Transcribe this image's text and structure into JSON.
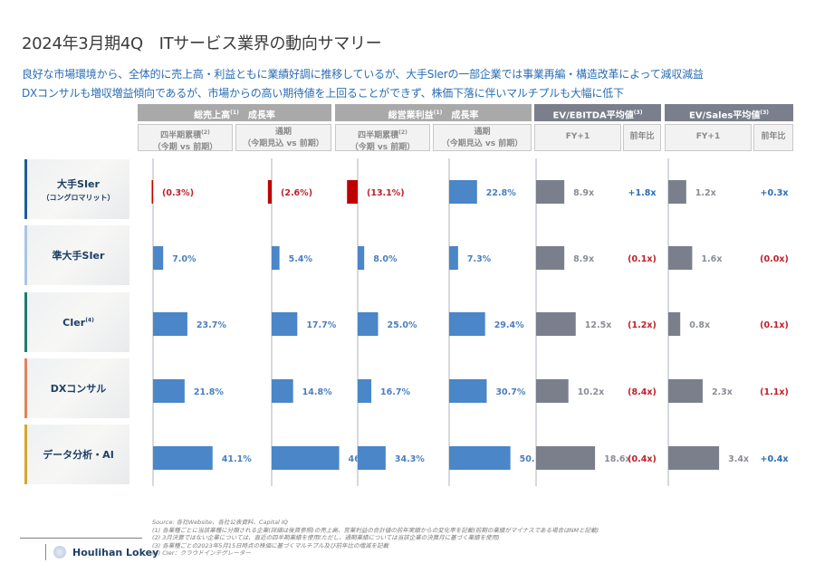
{
  "header": {
    "title": "2024年3月期4Q　ITサービス業界の動向サマリー",
    "summary_lines": [
      "良好な市場環境から、全体的に売上高・利益ともに業績好調に推移しているが、大手SIerの一部企業では事業再編・構造改革によって減収減益",
      "DXコンサルも増収増益傾向であるが、市場からの高い期待値を上回ることができず、株価下落に伴いマルチプルも大幅に低下"
    ]
  },
  "column_groups": [
    {
      "label": "総売上高",
      "sup": "(1)",
      "suffix": "　成長率"
    },
    {
      "label": "総営業利益",
      "sup": "(1)",
      "suffix": "　成長率"
    },
    {
      "label": "EV/EBITDA平均値",
      "sup": "(3)",
      "suffix": ""
    },
    {
      "label": "EV/Sales平均値",
      "sup": "(3)",
      "suffix": ""
    }
  ],
  "sub_headers": [
    {
      "line1": "四半期累積",
      "sup": "(2)",
      "line2": "（今期 vs 前期）"
    },
    {
      "line1": "通期",
      "sup": "",
      "line2": "（今期見込 vs 前期）"
    },
    {
      "line1": "四半期累積",
      "sup": "(2)",
      "line2": "（今期 vs 前期）"
    },
    {
      "line1": "通期",
      "sup": "",
      "line2": "（今期見込 vs 前期）"
    },
    {
      "line1": "FY+1"
    },
    {
      "line1": "前年比"
    },
    {
      "line1": "FY+1"
    },
    {
      "line1": "前年比"
    }
  ],
  "rows": [
    {
      "label": "大手SIer",
      "sub": "（コングロマリット）",
      "sup": "",
      "accent": "#1f5c99"
    },
    {
      "label": "準大手SIer",
      "sub": "",
      "sup": "",
      "accent": "#a8c6e4"
    },
    {
      "label": "CIer",
      "sub": "",
      "sup": "(4)",
      "accent": "#1f7a6e"
    },
    {
      "label": "DXコンサル",
      "sub": "",
      "sup": "",
      "accent": "#e0845a"
    },
    {
      "label": "データ分析・AI",
      "sub": "",
      "sup": "",
      "accent": "#d4a72c"
    }
  ],
  "colors": {
    "positive_bar": "#4a86c8",
    "negative_bar": "#c00000",
    "multiple_bar": "#7b7f8c",
    "positive_text": "#4a7fc0",
    "negative_text": "#c0202a",
    "multiple_text": "#8a8d95",
    "yoy_positive_text": "#2a6db5"
  },
  "chart_data": [
    {
      "type": "bar",
      "title": "総売上高 成長率 四半期累積（今期 vs 前期）",
      "orientation": "horizontal",
      "unit": "%",
      "categories": [
        "大手SIer（コングロマリット）",
        "準大手SIer",
        "CIer",
        "DXコンサル",
        "データ分析・AI"
      ],
      "values": [
        -0.3,
        7.0,
        23.7,
        21.8,
        41.1
      ],
      "labels": [
        "(0.3%)",
        "7.0%",
        "23.7%",
        "21.8%",
        "41.1%"
      ]
    },
    {
      "type": "bar",
      "title": "総売上高 成長率 通期（今期見込 vs 前期）",
      "orientation": "horizontal",
      "unit": "%",
      "categories": [
        "大手SIer（コングロマリット）",
        "準大手SIer",
        "CIer",
        "DXコンサル",
        "データ分析・AI"
      ],
      "values": [
        -2.6,
        5.4,
        17.7,
        14.8,
        46.6
      ],
      "labels": [
        "(2.6%)",
        "5.4%",
        "17.7%",
        "14.8%",
        "46.6%"
      ]
    },
    {
      "type": "bar",
      "title": "総営業利益 成長率 四半期累積（今期 vs 前期）",
      "orientation": "horizontal",
      "unit": "%",
      "categories": [
        "大手SIer（コングロマリット）",
        "準大手SIer",
        "CIer",
        "DXコンサル",
        "データ分析・AI"
      ],
      "values": [
        -13.1,
        8.0,
        25.0,
        16.7,
        34.3
      ],
      "labels": [
        "(13.1%)",
        "8.0%",
        "25.0%",
        "16.7%",
        "34.3%"
      ]
    },
    {
      "type": "bar",
      "title": "総営業利益 成長率 通期（今期見込 vs 前期）",
      "orientation": "horizontal",
      "unit": "%",
      "categories": [
        "大手SIer（コングロマリット）",
        "準大手SIer",
        "CIer",
        "DXコンサル",
        "データ分析・AI"
      ],
      "values": [
        22.8,
        7.3,
        29.4,
        30.7,
        50.1
      ],
      "labels": [
        "22.8%",
        "7.3%",
        "29.4%",
        "30.7%",
        "50.1%"
      ]
    },
    {
      "type": "bar",
      "title": "EV/EBITDA平均値 FY+1",
      "orientation": "horizontal",
      "unit": "x",
      "categories": [
        "大手SIer（コングロマリット）",
        "準大手SIer",
        "CIer",
        "DXコンサル",
        "データ分析・AI"
      ],
      "values": [
        8.9,
        8.9,
        12.5,
        10.2,
        18.6
      ],
      "labels": [
        "8.9x",
        "8.9x",
        "12.5x",
        "10.2x",
        "18.6x"
      ],
      "yoy": [
        1.8,
        -0.1,
        -1.2,
        -8.4,
        -0.4
      ],
      "yoy_labels": [
        "+1.8x",
        "(0.1x)",
        "(1.2x)",
        "(8.4x)",
        "(0.4x)"
      ]
    },
    {
      "type": "bar",
      "title": "EV/Sales平均値 FY+1",
      "orientation": "horizontal",
      "unit": "x",
      "categories": [
        "大手SIer（コングロマリット）",
        "準大手SIer",
        "CIer",
        "DXコンサル",
        "データ分析・AI"
      ],
      "values": [
        1.2,
        1.6,
        0.8,
        2.3,
        3.4
      ],
      "labels": [
        "1.2x",
        "1.6x",
        "0.8x",
        "2.3x",
        "3.4x"
      ],
      "yoy": [
        0.3,
        -0.0,
        -0.1,
        -1.1,
        0.4
      ],
      "yoy_labels": [
        "+0.3x",
        "(0.0x)",
        "(0.1x)",
        "(1.1x)",
        "+0.4x"
      ]
    }
  ],
  "footnotes": [
    "Source: 各社Website、各社公表資料、Capital IQ",
    "(1) 各業種ごとに当該業種に分類される企業(詳細は後頁参照)の売上高、営業利益の合計値の前年実績からの変化率を記載(前期の業績がマイナスである場合はNMと記載)",
    "(2) 3月決算ではない企業については、直近の四半期業績を使用(ただし、通期業績については当該企業の決算月に基づく業績を使用)",
    "(3) 各業種ごとの2023年5月15日時点の株価に基づくマルチプル及び前年比の増減を記載",
    "(4) CIer：クラウドインテグレーター"
  ],
  "brand": {
    "name": "Houlihan Lokey"
  }
}
